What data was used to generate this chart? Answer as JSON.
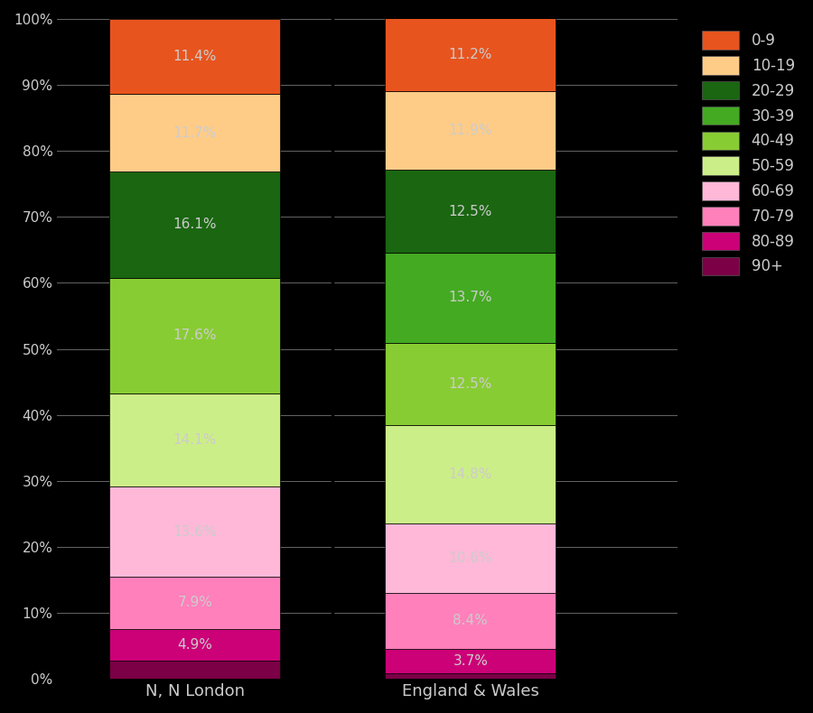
{
  "categories": [
    "N, N London",
    "England & Wales"
  ],
  "london_segs": [
    {
      "val": 2.7,
      "label": null,
      "color": "#7B0045"
    },
    {
      "val": 4.9,
      "label": "4.9%",
      "color": "#CC0077"
    },
    {
      "val": 7.9,
      "label": "7.9%",
      "color": "#FF80BB"
    },
    {
      "val": 13.6,
      "label": "13.6%",
      "color": "#FFB8D8"
    },
    {
      "val": 14.1,
      "label": "14.1%",
      "color": "#CCEE88"
    },
    {
      "val": 17.6,
      "label": "17.6%",
      "color": "#88CC33"
    },
    {
      "val": 16.1,
      "label": "16.1%",
      "color": "#1A6611"
    },
    {
      "val": 11.7,
      "label": "11.7%",
      "color": "#FFCC88"
    },
    {
      "val": 11.4,
      "label": "11.4%",
      "color": "#E8541E"
    }
  ],
  "ew_segs": [
    {
      "val": 0.9,
      "label": null,
      "color": "#7B0045"
    },
    {
      "val": 3.7,
      "label": "3.7%",
      "color": "#CC0077"
    },
    {
      "val": 8.4,
      "label": "8.4%",
      "color": "#FF80BB"
    },
    {
      "val": 10.6,
      "label": "10.6%",
      "color": "#FFB8D8"
    },
    {
      "val": 14.8,
      "label": "14.8%",
      "color": "#CCEE88"
    },
    {
      "val": 12.5,
      "label": "12.5%",
      "color": "#88CC33"
    },
    {
      "val": 13.7,
      "label": "13.7%",
      "color": "#44AA22"
    },
    {
      "val": 12.5,
      "label": "12.5%",
      "color": "#1A6611"
    },
    {
      "val": 11.9,
      "label": "11.9%",
      "color": "#FFCC88"
    },
    {
      "val": 11.2,
      "label": "11.2%",
      "color": "#E8541E"
    }
  ],
  "legend_entries": [
    {
      "label": "0-9",
      "color": "#E8541E"
    },
    {
      "label": "10-19",
      "color": "#FFCC88"
    },
    {
      "label": "20-29",
      "color": "#1A6611"
    },
    {
      "label": "30-39",
      "color": "#44AA22"
    },
    {
      "label": "40-49",
      "color": "#88CC33"
    },
    {
      "label": "50-59",
      "color": "#CCEE88"
    },
    {
      "label": "60-69",
      "color": "#FFB8D8"
    },
    {
      "label": "70-79",
      "color": "#FF80BB"
    },
    {
      "label": "80-89",
      "color": "#CC0077"
    },
    {
      "label": "90+",
      "color": "#7B0045"
    }
  ],
  "background_color": "#000000",
  "text_color": "#cccccc",
  "grid_color": "#666666",
  "bar_width": 0.62,
  "label_fontsize": 11,
  "tick_fontsize": 11,
  "xtick_fontsize": 13,
  "legend_fontsize": 12,
  "figsize": [
    9.0,
    7.9
  ],
  "dpi": 100,
  "xlim": [
    -0.5,
    1.75
  ],
  "ylim": [
    0,
    100
  ],
  "yticks": [
    0,
    10,
    20,
    30,
    40,
    50,
    60,
    70,
    80,
    90,
    100
  ],
  "ytick_labels": [
    "0%",
    "10%",
    "20%",
    "30%",
    "40%",
    "50%",
    "60%",
    "70%",
    "80%",
    "90%",
    "100%"
  ]
}
